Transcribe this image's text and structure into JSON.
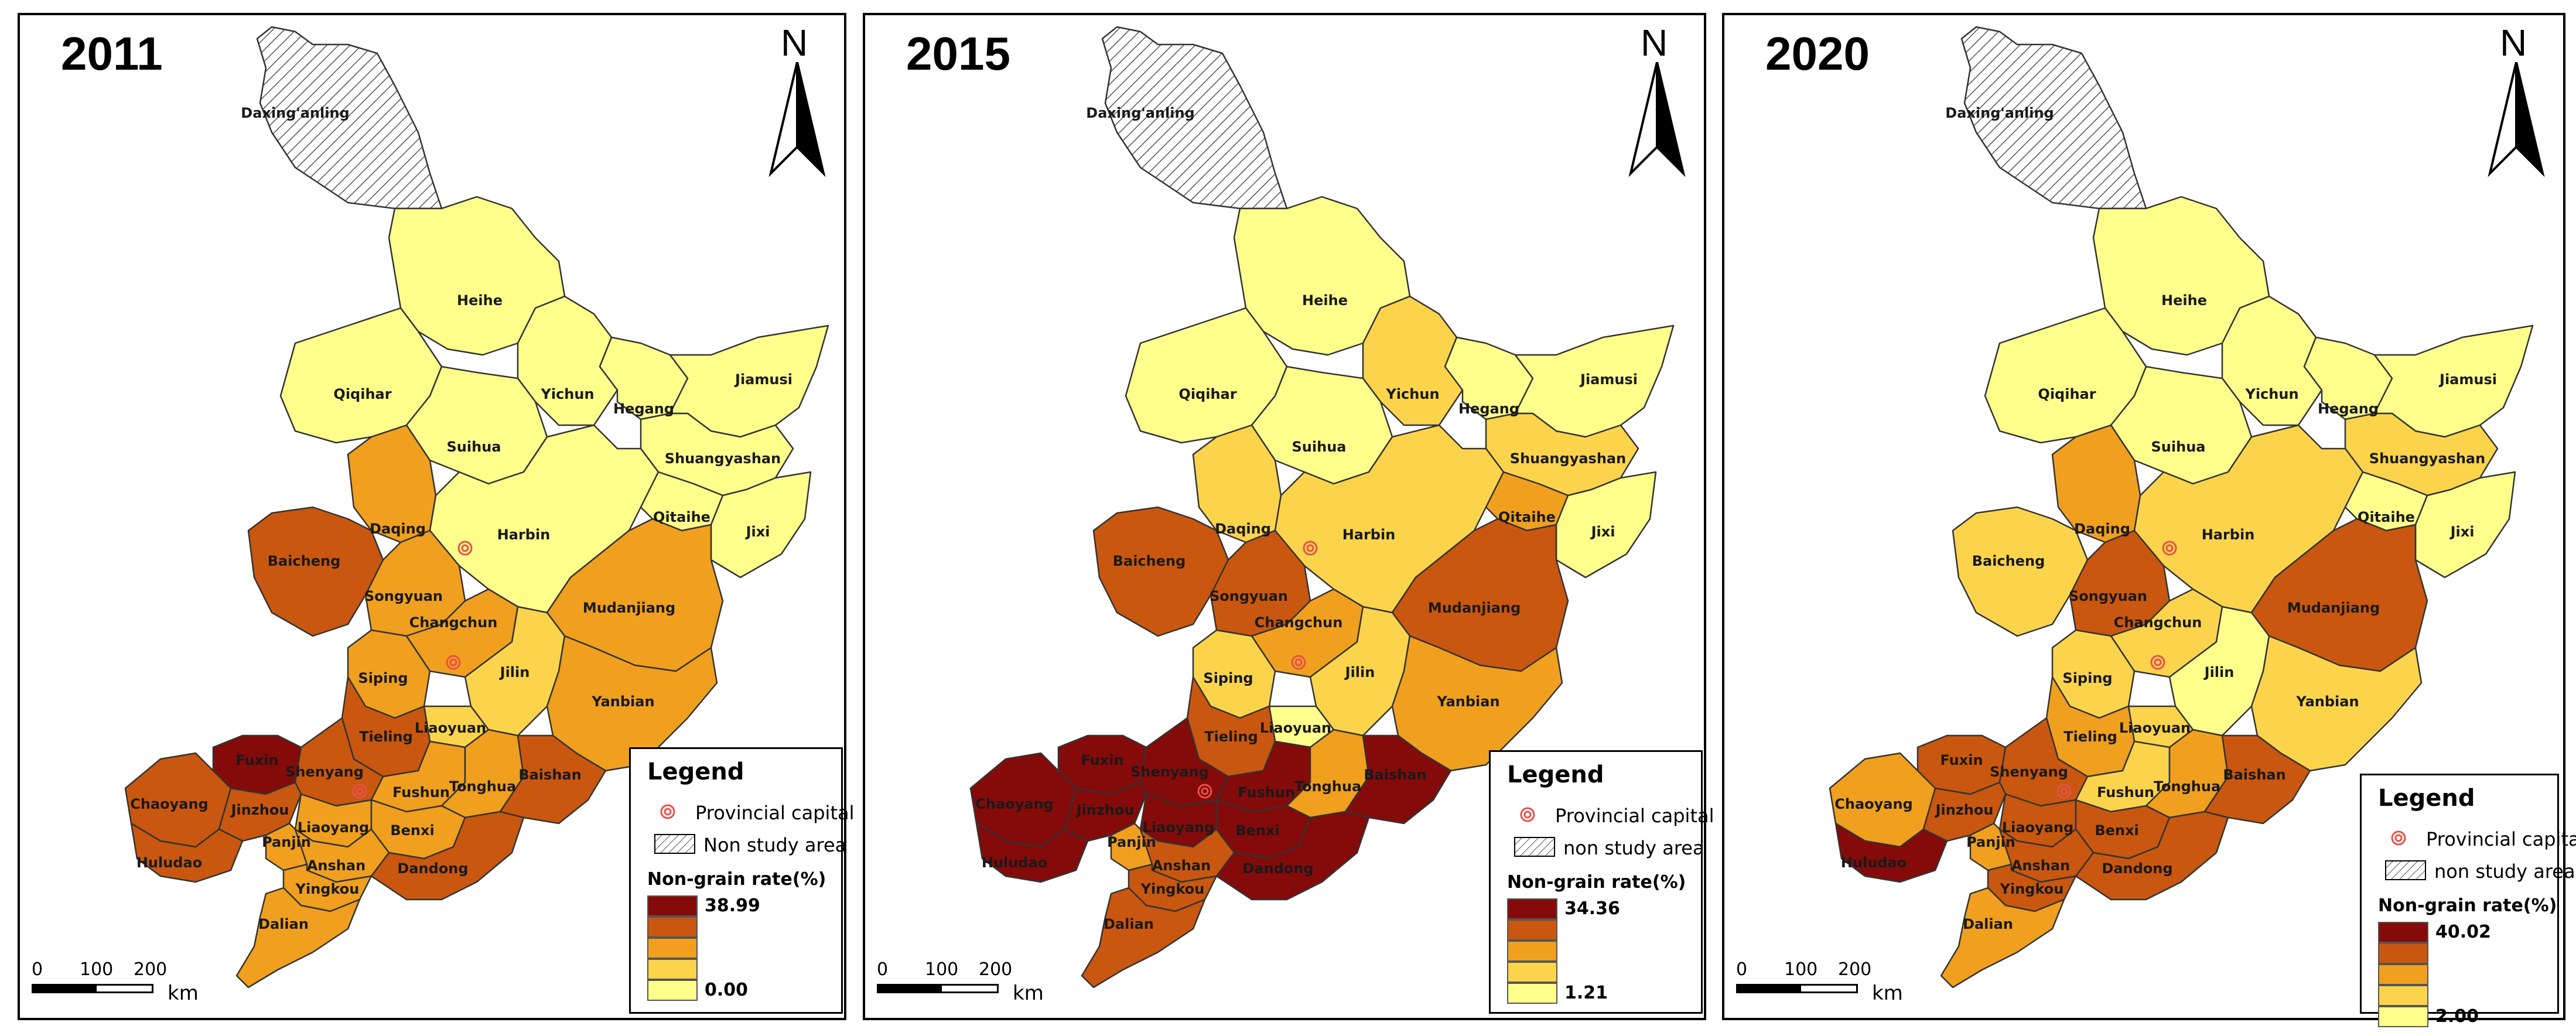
{
  "colors": {
    "level1": "#ffff8c",
    "level2": "#fbd44c",
    "level3": "#f0a01e",
    "level4": "#c9570f",
    "level5": "#850a0a",
    "hatch": "#555555",
    "capital": "#e8504a"
  },
  "icons": {
    "north_arrow": "north-arrow-icon",
    "capital": "capital-symbol-icon",
    "hatch": "hatch-pattern-icon"
  },
  "scalebar": {
    "ticks": [
      "0",
      "100",
      "200"
    ],
    "unit": "km"
  },
  "north_label": "N",
  "labels": {
    "daxinganling": "Daxing'anling",
    "heihe": "Heihe",
    "qiqihar": "Qiqihar",
    "yichun": "Yichun",
    "hegang": "Hegang",
    "jiamusi": "Jiamusi",
    "suihua": "Suihua",
    "shuangyashan": "Shuangyashan",
    "daqing": "Daqing",
    "harbin": "Harbin",
    "qitaihe": "Qitaihe",
    "jixi": "Jixi",
    "baicheng": "Baicheng",
    "songyuan": "Songyuan",
    "mudanjiang": "Mudanjiang",
    "changchun": "Changchun",
    "siping": "Siping",
    "jilin": "Jilin",
    "yanbian": "Yanbian",
    "liaoyuan": "Liaoyuan",
    "tieling": "Tieling",
    "fuxin": "Fuxin",
    "shenyang": "Shenyang",
    "fushun": "Fushun",
    "tonghua": "Tonghua",
    "baishan": "Baishan",
    "chaoyang": "Chaoyang",
    "jinzhou": "Jinzhou",
    "liaoyang": "Liaoyang",
    "benxi": "Benxi",
    "panjin": "Panjin",
    "huludao": "Huludao",
    "anshan": "Anshan",
    "dandong": "Dandong",
    "yingkou": "Yingkou",
    "dalian": "Dalian"
  },
  "maps": [
    {
      "year": "2011",
      "legend": {
        "title": "Legend",
        "capital_label": "Provincial capital",
        "non_study_label": "Non study area",
        "rate_title": "Non-grain rate(%)",
        "max": "38.99",
        "min": "0.00"
      },
      "classes": {
        "heihe": 1,
        "qiqihar": 1,
        "yichun": 1,
        "hegang": 1,
        "jiamusi": 1,
        "suihua": 1,
        "shuangyashan": 1,
        "daqing": 3,
        "harbin": 1,
        "qitaihe": 1,
        "jixi": 1,
        "baicheng": 4,
        "songyuan": 3,
        "mudanjiang": 3,
        "changchun": 3,
        "siping": 3,
        "jilin": 2,
        "yanbian": 3,
        "liaoyuan": 2,
        "tieling": 4,
        "fuxin": 5,
        "shenyang": 4,
        "fushun": 3,
        "tonghua": 3,
        "baishan": 4,
        "chaoyang": 4,
        "jinzhou": 4,
        "liaoyang": 3,
        "benxi": 3,
        "panjin": 3,
        "huludao": 4,
        "anshan": 3,
        "dandong": 4,
        "yingkou": 3,
        "dalian": 3
      }
    },
    {
      "year": "2015",
      "legend": {
        "title": "Legend",
        "capital_label": "Provincial capital",
        "non_study_label": "non study area",
        "rate_title": "Non-grain rate(%)",
        "max": "34.36",
        "min": "1.21"
      },
      "classes": {
        "heihe": 1,
        "qiqihar": 1,
        "yichun": 2,
        "hegang": 1,
        "jiamusi": 1,
        "suihua": 1,
        "shuangyashan": 2,
        "daqing": 2,
        "harbin": 2,
        "qitaihe": 3,
        "jixi": 1,
        "baicheng": 4,
        "songyuan": 4,
        "mudanjiang": 4,
        "changchun": 3,
        "siping": 2,
        "jilin": 2,
        "yanbian": 3,
        "liaoyuan": 1,
        "tieling": 4,
        "fuxin": 5,
        "shenyang": 5,
        "fushun": 5,
        "tonghua": 3,
        "baishan": 5,
        "chaoyang": 5,
        "jinzhou": 5,
        "liaoyang": 5,
        "benxi": 5,
        "panjin": 3,
        "huludao": 5,
        "anshan": 4,
        "dandong": 5,
        "yingkou": 4,
        "dalian": 4
      }
    },
    {
      "year": "2020",
      "legend": {
        "title": "Legend",
        "capital_label": "Provincial capital",
        "non_study_label": "non study area",
        "rate_title": "Non-grain rate(%)",
        "max": "40.02",
        "min": "2.00"
      },
      "classes": {
        "heihe": 1,
        "qiqihar": 1,
        "yichun": 1,
        "hegang": 1,
        "jiamusi": 1,
        "suihua": 1,
        "shuangyashan": 2,
        "daqing": 3,
        "harbin": 2,
        "qitaihe": 1,
        "jixi": 1,
        "baicheng": 2,
        "songyuan": 4,
        "mudanjiang": 4,
        "changchun": 2,
        "siping": 2,
        "jilin": 1,
        "yanbian": 2,
        "liaoyuan": 2,
        "tieling": 3,
        "fuxin": 4,
        "shenyang": 4,
        "fushun": 2,
        "tonghua": 3,
        "baishan": 4,
        "chaoyang": 3,
        "jinzhou": 4,
        "liaoyang": 4,
        "benxi": 4,
        "panjin": 3,
        "huludao": 5,
        "anshan": 4,
        "dandong": 4,
        "yingkou": 4,
        "dalian": 3
      }
    }
  ]
}
